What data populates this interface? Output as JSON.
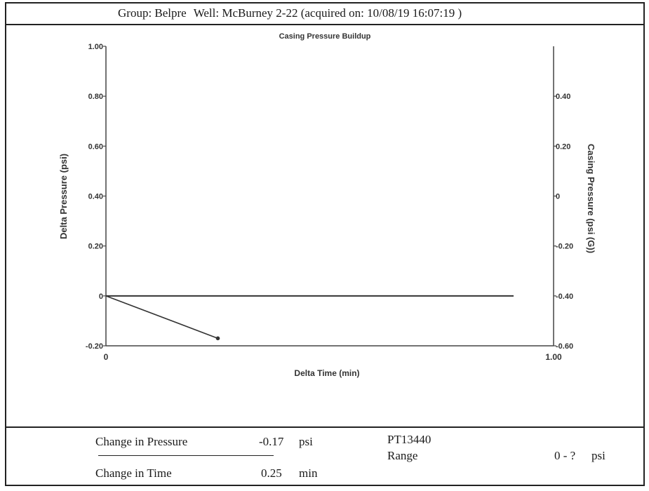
{
  "header": {
    "group": "Group: Belpre",
    "well": "Well: McBurney 2-22 (acquired on: 10/08/19 16:07:19 )"
  },
  "chart_data": {
    "type": "line",
    "title": "Casing Pressure Buildup",
    "xlabel": "Delta Time (min)",
    "ylabel": "Delta Pressure (psi)",
    "y2label": "Casing Pressure (psi (G))",
    "xlim": [
      0,
      1.0
    ],
    "ylim": [
      -0.2,
      1.0
    ],
    "y2lim": [
      -0.6,
      0.6
    ],
    "x_ticks": [
      "0",
      "1.00"
    ],
    "y_ticks": [
      {
        "value": 1.0,
        "label": "1.00"
      },
      {
        "value": 0.8,
        "label": "0.80"
      },
      {
        "value": 0.6,
        "label": "0.60"
      },
      {
        "value": 0.4,
        "label": "0.40"
      },
      {
        "value": 0.2,
        "label": "0.20"
      },
      {
        "value": 0.0,
        "label": "0"
      },
      {
        "value": -0.2,
        "label": "-0.20"
      }
    ],
    "y2_ticks": [
      {
        "value": 0.4,
        "label": "0.40"
      },
      {
        "value": 0.2,
        "label": "0.20"
      },
      {
        "value": 0.0,
        "label": "0"
      },
      {
        "value": -0.2,
        "label": "-0.20"
      },
      {
        "value": -0.4,
        "label": "-0.40"
      },
      {
        "value": -0.6,
        "label": "-0.60"
      }
    ],
    "series": [
      {
        "axis": "left",
        "x": [
          0,
          0.25
        ],
        "y": [
          0,
          -0.17
        ]
      }
    ],
    "reference_line_y": 0,
    "grid": false,
    "colors": {
      "series": "#333333",
      "axes": "#444444",
      "text": "#333333"
    }
  },
  "footer": {
    "pressure_label": "Change in Pressure",
    "pressure_value": "-0.17",
    "pressure_unit": "psi",
    "time_label": "Change in Time",
    "time_value": "0.25",
    "time_unit": "min",
    "sensor_id": "PT13440",
    "range_label": "Range",
    "range_value": "0 - ?",
    "range_unit": "psi"
  }
}
